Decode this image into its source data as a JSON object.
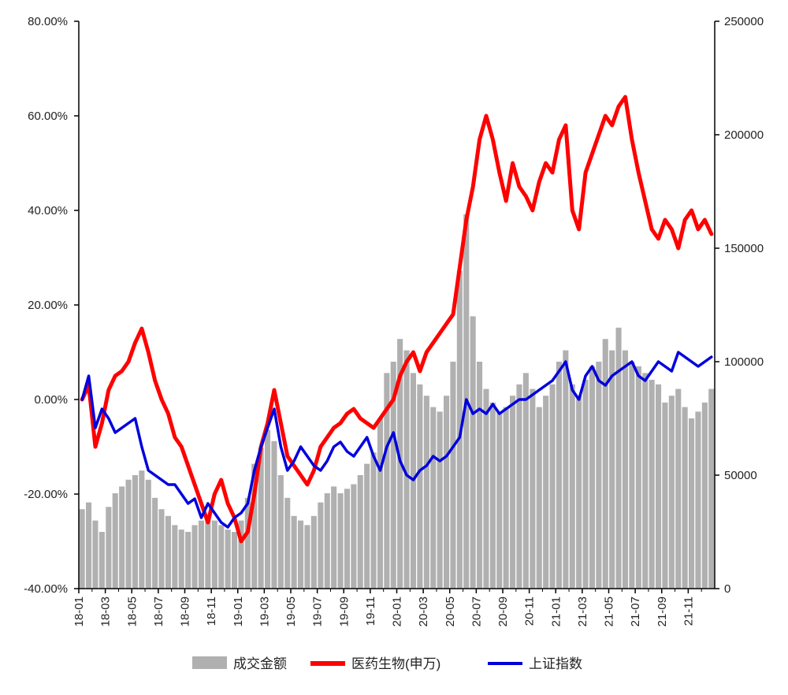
{
  "chart_data": {
    "type": "bar+line",
    "x_ticks": [
      "18-01",
      "18-03",
      "18-05",
      "18-07",
      "18-09",
      "18-11",
      "19-01",
      "19-03",
      "19-05",
      "19-07",
      "19-09",
      "19-11",
      "20-01",
      "20-03",
      "20-05",
      "20-07",
      "20-09",
      "20-11",
      "21-01",
      "21-03",
      "21-05",
      "21-07",
      "21-09",
      "21-11"
    ],
    "y_left_ticks": [
      "80.00%",
      "60.00%",
      "40.00%",
      "20.00%",
      "0.00%",
      "-20.00%",
      "-40.00%"
    ],
    "y_left_range": [
      -40,
      80
    ],
    "y_right_ticks": [
      "250000",
      "200000",
      "150000",
      "100000",
      "50000",
      "0"
    ],
    "y_right_range": [
      0,
      250000
    ],
    "legend": [
      {
        "label": "成交金额",
        "color": "#b0b0b0"
      },
      {
        "label": "医药生物(申万)",
        "color": "#ff0000"
      },
      {
        "label": "上证指数",
        "color": "#0000dd"
      }
    ],
    "legend_position": "bottom",
    "series": [
      {
        "name": "医药生物(申万)",
        "axis": "left",
        "color": "#ff0000",
        "x_month_index": [
          0,
          0.5,
          1,
          1.5,
          2,
          2.5,
          3,
          3.5,
          4,
          4.5,
          5,
          5.5,
          6,
          6.5,
          7,
          7.5,
          8,
          8.5,
          9,
          9.5,
          10,
          10.5,
          11,
          11.5,
          12,
          12.5,
          13,
          13.5,
          14,
          14.5,
          15,
          15.5,
          16,
          16.5,
          17,
          17.5,
          18,
          18.5,
          19,
          19.5,
          20,
          20.5,
          21,
          21.5,
          22,
          22.5,
          23,
          23.5,
          24,
          24.5,
          25,
          25.5,
          26,
          26.5,
          27,
          27.5,
          28,
          28.5,
          29,
          29.5,
          30,
          30.5,
          31,
          31.5,
          32,
          32.5,
          33,
          33.5,
          34,
          34.5,
          35,
          35.5,
          36,
          36.5,
          37,
          37.5,
          38,
          38.5,
          39,
          39.5,
          40,
          40.5,
          41,
          41.5,
          42,
          42.5,
          43,
          43.5,
          44,
          44.5,
          45,
          45.5,
          46,
          46.5,
          47,
          47.5
        ],
        "values": [
          0,
          3,
          -10,
          -5,
          2,
          5,
          6,
          8,
          12,
          15,
          10,
          4,
          0,
          -3,
          -8,
          -10,
          -14,
          -18,
          -22,
          -26,
          -20,
          -17,
          -22,
          -25,
          -30,
          -28,
          -20,
          -10,
          -5,
          2,
          -5,
          -12,
          -14,
          -16,
          -18,
          -15,
          -10,
          -8,
          -6,
          -5,
          -3,
          -2,
          -4,
          -5,
          -6,
          -4,
          -2,
          0,
          5,
          8,
          10,
          6,
          10,
          12,
          14,
          16,
          18,
          28,
          38,
          45,
          55,
          60,
          55,
          48,
          42,
          50,
          45,
          43,
          40,
          46,
          50,
          48,
          55,
          58,
          40,
          36,
          48,
          52,
          56,
          60,
          58,
          62,
          64,
          55,
          48,
          42,
          36,
          34,
          38,
          36,
          32,
          38,
          40,
          36,
          38,
          35
        ]
      },
      {
        "name": "上证指数",
        "axis": "left",
        "color": "#0000dd",
        "x_month_index": [
          0,
          0.5,
          1,
          1.5,
          2,
          2.5,
          3,
          3.5,
          4,
          4.5,
          5,
          5.5,
          6,
          6.5,
          7,
          7.5,
          8,
          8.5,
          9,
          9.5,
          10,
          10.5,
          11,
          11.5,
          12,
          12.5,
          13,
          13.5,
          14,
          14.5,
          15,
          15.5,
          16,
          16.5,
          17,
          17.5,
          18,
          18.5,
          19,
          19.5,
          20,
          20.5,
          21,
          21.5,
          22,
          22.5,
          23,
          23.5,
          24,
          24.5,
          25,
          25.5,
          26,
          26.5,
          27,
          27.5,
          28,
          28.5,
          29,
          29.5,
          30,
          30.5,
          31,
          31.5,
          32,
          32.5,
          33,
          33.5,
          34,
          34.5,
          35,
          35.5,
          36,
          36.5,
          37,
          37.5,
          38,
          38.5,
          39,
          39.5,
          40,
          40.5,
          41,
          41.5,
          42,
          42.5,
          43,
          43.5,
          44,
          44.5,
          45,
          45.5,
          46,
          46.5,
          47,
          47.5
        ],
        "values": [
          0,
          5,
          -6,
          -2,
          -4,
          -7,
          -6,
          -5,
          -4,
          -10,
          -15,
          -16,
          -17,
          -18,
          -18,
          -20,
          -22,
          -21,
          -25,
          -22,
          -24,
          -26,
          -27,
          -25,
          -24,
          -22,
          -15,
          -10,
          -6,
          -2,
          -10,
          -15,
          -13,
          -10,
          -12,
          -14,
          -15,
          -13,
          -10,
          -9,
          -11,
          -12,
          -10,
          -8,
          -12,
          -15,
          -10,
          -7,
          -13,
          -16,
          -17,
          -15,
          -14,
          -12,
          -13,
          -12,
          -10,
          -8,
          0,
          -3,
          -2,
          -3,
          -1,
          -3,
          -2,
          -1,
          0,
          0,
          1,
          2,
          3,
          4,
          6,
          8,
          2,
          0,
          5,
          7,
          4,
          3,
          5,
          6,
          7,
          8,
          5,
          4,
          6,
          8,
          7,
          6,
          10,
          9,
          8,
          7,
          8,
          9
        ]
      },
      {
        "name": "成交金额",
        "axis": "right",
        "color": "#b0b0b0",
        "x_month_index": [
          0,
          0.5,
          1,
          1.5,
          2,
          2.5,
          3,
          3.5,
          4,
          4.5,
          5,
          5.5,
          6,
          6.5,
          7,
          7.5,
          8,
          8.5,
          9,
          9.5,
          10,
          10.5,
          11,
          11.5,
          12,
          12.5,
          13,
          13.5,
          14,
          14.5,
          15,
          15.5,
          16,
          16.5,
          17,
          17.5,
          18,
          18.5,
          19,
          19.5,
          20,
          20.5,
          21,
          21.5,
          22,
          22.5,
          23,
          23.5,
          24,
          24.5,
          25,
          25.5,
          26,
          26.5,
          27,
          27.5,
          28,
          28.5,
          29,
          29.5,
          30,
          30.5,
          31,
          31.5,
          32,
          32.5,
          33,
          33.5,
          34,
          34.5,
          35,
          35.5,
          36,
          36.5,
          37,
          37.5,
          38,
          38.5,
          39,
          39.5,
          40,
          40.5,
          41,
          41.5,
          42,
          42.5,
          43,
          43.5,
          44,
          44.5,
          45,
          45.5,
          46,
          46.5,
          47,
          47.5
        ],
        "values": [
          35000,
          38000,
          30000,
          25000,
          36000,
          42000,
          45000,
          48000,
          50000,
          52000,
          48000,
          40000,
          35000,
          32000,
          28000,
          26000,
          25000,
          28000,
          30000,
          32000,
          30000,
          28000,
          26000,
          25000,
          30000,
          40000,
          55000,
          62000,
          70000,
          65000,
          50000,
          40000,
          32000,
          30000,
          28000,
          32000,
          38000,
          42000,
          45000,
          42000,
          44000,
          46000,
          50000,
          55000,
          60000,
          75000,
          95000,
          100000,
          110000,
          105000,
          95000,
          90000,
          85000,
          80000,
          78000,
          85000,
          100000,
          140000,
          165000,
          120000,
          100000,
          88000,
          82000,
          78000,
          80000,
          85000,
          90000,
          95000,
          88000,
          80000,
          85000,
          90000,
          100000,
          105000,
          90000,
          85000,
          92000,
          98000,
          100000,
          110000,
          105000,
          115000,
          105000,
          100000,
          98000,
          95000,
          92000,
          90000,
          82000,
          85000,
          88000,
          80000,
          75000,
          78000,
          82000,
          88000
        ]
      }
    ]
  }
}
